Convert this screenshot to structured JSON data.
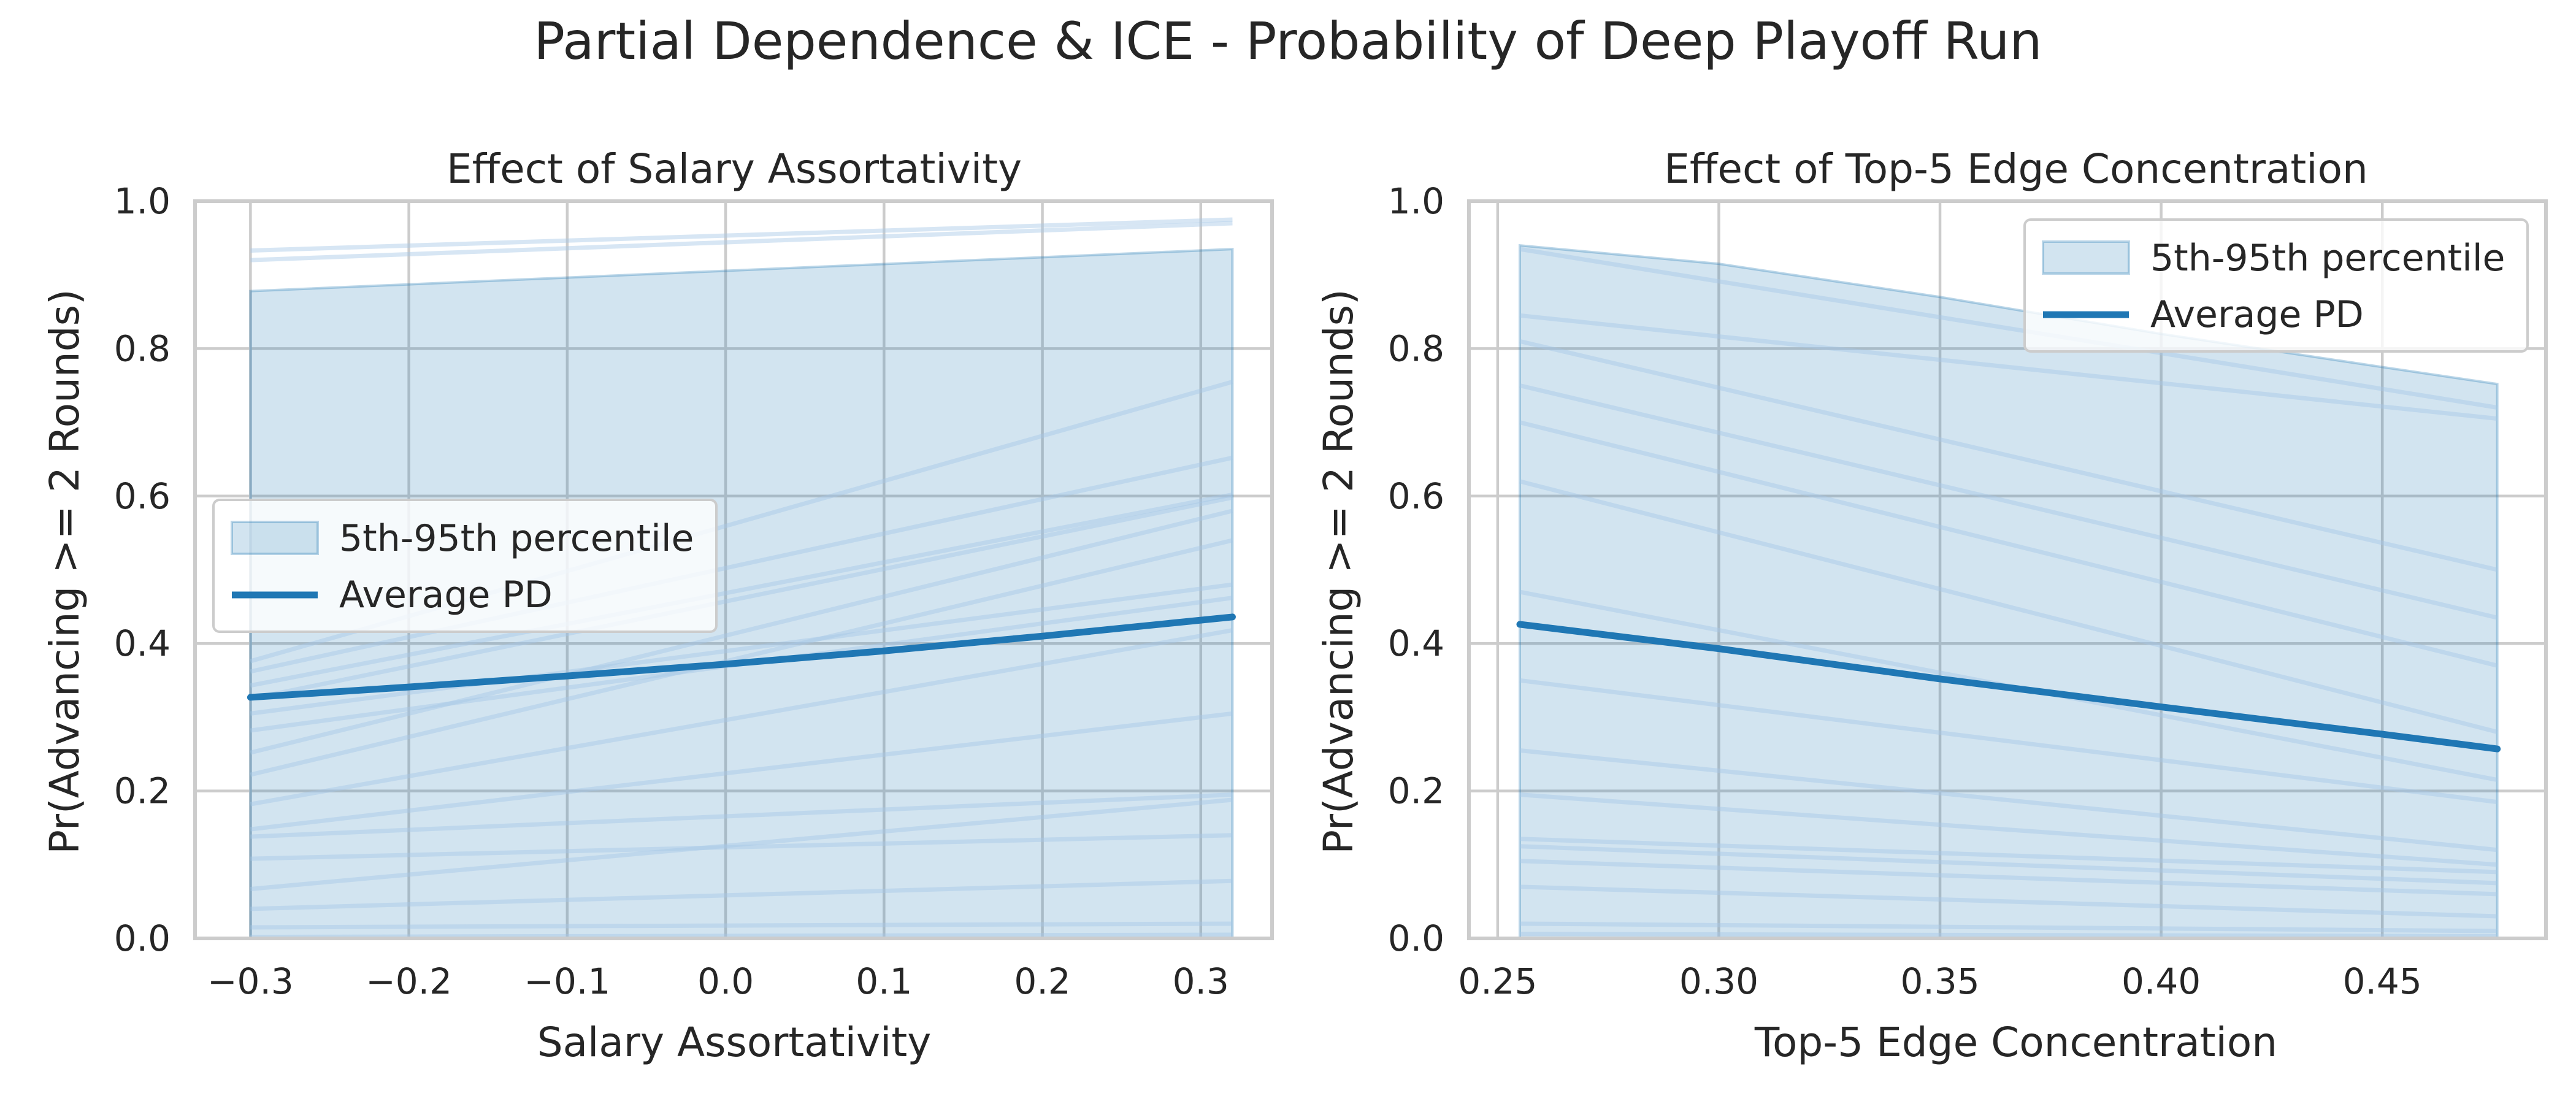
{
  "figure": {
    "suptitle": "Partial Dependence & ICE - Probability of Deep Playoff Run"
  },
  "colors": {
    "pd_line": "#1f77b4",
    "band_fill": "#1f77b4",
    "ice_line": "#a6c8e6",
    "grid": "#cccccc",
    "spine": "#cccccc",
    "text": "#262626"
  },
  "chart_data": [
    {
      "type": "line",
      "title": "Effect of Salary Assortativity",
      "xlabel": "Salary Assortativity",
      "ylabel": "Pr(Advancing >= 2 Rounds)",
      "xlim": [
        -0.335,
        0.345
      ],
      "ylim": [
        0.0,
        1.0
      ],
      "xticks": [
        -0.3,
        -0.2,
        -0.1,
        0.0,
        0.1,
        0.2,
        0.3
      ],
      "xtick_labels": [
        "−0.3",
        "−0.2",
        "−0.1",
        "0.0",
        "0.1",
        "0.2",
        "0.3"
      ],
      "yticks": [
        0.0,
        0.2,
        0.4,
        0.6,
        0.8,
        1.0
      ],
      "ytick_labels": [
        "0.0",
        "0.2",
        "0.4",
        "0.6",
        "0.8",
        "1.0"
      ],
      "grid": true,
      "legend": {
        "placement": "center-left",
        "entries": [
          {
            "label": "5th-95th percentile",
            "kind": "band"
          },
          {
            "label": "Average PD",
            "kind": "line"
          }
        ]
      },
      "band": {
        "name": "5th-95th percentile",
        "x": [
          -0.3,
          0.32
        ],
        "lower": [
          0.0,
          0.0
        ],
        "upper": [
          0.878,
          0.935
        ]
      },
      "average_pd": {
        "name": "Average PD",
        "x": [
          -0.3,
          -0.2,
          -0.1,
          0.0,
          0.1,
          0.2,
          0.32
        ],
        "y": [
          0.327,
          0.341,
          0.356,
          0.372,
          0.39,
          0.41,
          0.436
        ]
      },
      "ice": {
        "x": [
          -0.3,
          0.32
        ],
        "lines": [
          [
            0.933,
            0.975
          ],
          [
            0.92,
            0.97
          ],
          [
            0.376,
            0.755
          ],
          [
            0.362,
            0.652
          ],
          [
            0.343,
            0.602
          ],
          [
            0.325,
            0.598
          ],
          [
            0.252,
            0.58
          ],
          [
            0.222,
            0.54
          ],
          [
            0.305,
            0.48
          ],
          [
            0.282,
            0.462
          ],
          [
            0.182,
            0.418
          ],
          [
            0.148,
            0.305
          ],
          [
            0.138,
            0.195
          ],
          [
            0.108,
            0.14
          ],
          [
            0.067,
            0.188
          ],
          [
            0.04,
            0.078
          ],
          [
            0.015,
            0.02
          ],
          [
            0.002,
            0.005
          ]
        ]
      }
    },
    {
      "type": "line",
      "title": "Effect of Top-5 Edge Concentration",
      "xlabel": "Top-5 Edge Concentration",
      "ylabel": "Pr(Advancing >= 2 Rounds)",
      "xlim": [
        0.2435,
        0.487
      ],
      "ylim": [
        0.0,
        1.0
      ],
      "xticks": [
        0.25,
        0.3,
        0.35,
        0.4,
        0.45
      ],
      "xtick_labels": [
        "0.25",
        "0.30",
        "0.35",
        "0.40",
        "0.45"
      ],
      "yticks": [
        0.0,
        0.2,
        0.4,
        0.6,
        0.8,
        1.0
      ],
      "ytick_labels": [
        "0.0",
        "0.2",
        "0.4",
        "0.6",
        "0.8",
        "1.0"
      ],
      "grid": true,
      "legend": {
        "placement": "top-right",
        "entries": [
          {
            "label": "5th-95th percentile",
            "kind": "band"
          },
          {
            "label": "Average PD",
            "kind": "line"
          }
        ]
      },
      "band": {
        "name": "5th-95th percentile",
        "x": [
          0.255,
          0.3,
          0.35,
          0.4,
          0.45,
          0.476
        ],
        "lower": [
          0.0,
          0.0,
          0.0,
          0.0,
          0.0,
          0.0
        ],
        "upper": [
          0.94,
          0.915,
          0.87,
          0.82,
          0.775,
          0.752
        ]
      },
      "average_pd": {
        "name": "Average PD",
        "x": [
          0.255,
          0.3,
          0.35,
          0.4,
          0.45,
          0.476
        ],
        "y": [
          0.426,
          0.393,
          0.352,
          0.314,
          0.277,
          0.257
        ]
      },
      "ice": {
        "x": [
          0.255,
          0.476
        ],
        "lines": [
          [
            0.935,
            0.72
          ],
          [
            0.845,
            0.705
          ],
          [
            0.81,
            0.5
          ],
          [
            0.75,
            0.435
          ],
          [
            0.7,
            0.37
          ],
          [
            0.62,
            0.28
          ],
          [
            0.47,
            0.215
          ],
          [
            0.35,
            0.185
          ],
          [
            0.255,
            0.12
          ],
          [
            0.195,
            0.1
          ],
          [
            0.135,
            0.09
          ],
          [
            0.125,
            0.075
          ],
          [
            0.105,
            0.06
          ],
          [
            0.07,
            0.03
          ],
          [
            0.02,
            0.01
          ],
          [
            0.006,
            0.003
          ]
        ]
      }
    }
  ]
}
